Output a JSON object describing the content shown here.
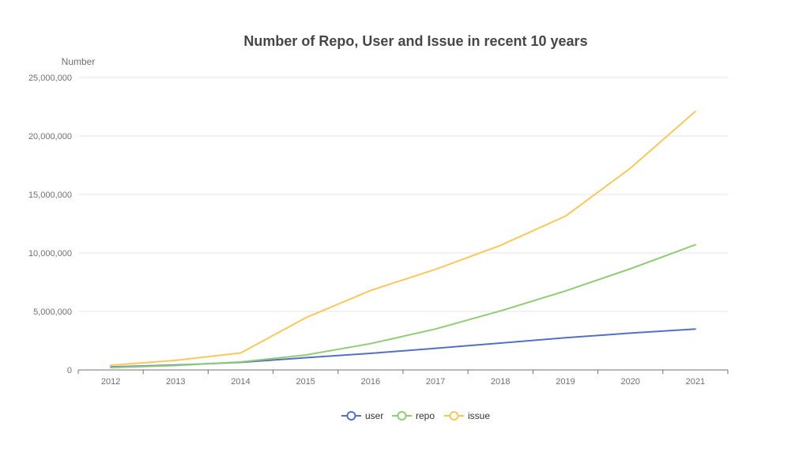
{
  "chart_data": {
    "type": "line",
    "title": "Number of Repo, User and Issue in recent 10 years",
    "ylabel": "Number",
    "xlabel": "",
    "categories": [
      "2012",
      "2013",
      "2014",
      "2015",
      "2016",
      "2017",
      "2018",
      "2019",
      "2020",
      "2021"
    ],
    "ylim": [
      0,
      25000000
    ],
    "yticks": [
      0,
      5000000,
      10000000,
      15000000,
      20000000,
      25000000
    ],
    "ytick_labels": [
      "0",
      "5,000,000",
      "10,000,000",
      "15,000,000",
      "20,000,000",
      "25,000,000"
    ],
    "grid": "horizontal",
    "legend_position": "bottom",
    "series": [
      {
        "name": "user",
        "color": "#5470c6",
        "values": [
          250000,
          420000,
          650000,
          1050000,
          1420000,
          1850000,
          2300000,
          2750000,
          3150000,
          3500000
        ]
      },
      {
        "name": "repo",
        "color": "#91cc75",
        "values": [
          200000,
          380000,
          680000,
          1280000,
          2250000,
          3500000,
          5050000,
          6750000,
          8650000,
          10700000
        ]
      },
      {
        "name": "issue",
        "color": "#fac858",
        "values": [
          400000,
          820000,
          1450000,
          4450000,
          6800000,
          8600000,
          10650000,
          13150000,
          17250000,
          22100000
        ]
      }
    ]
  }
}
